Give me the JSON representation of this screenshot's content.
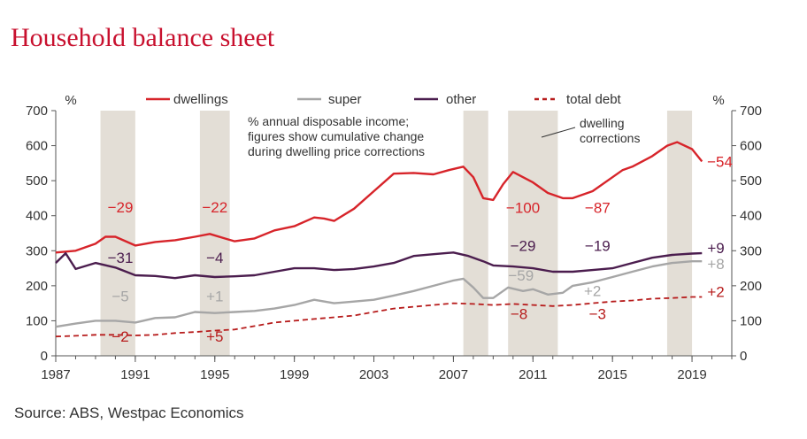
{
  "title": "Household balance sheet",
  "source": "Source: ABS, Westpac Economics",
  "colors": {
    "dwellings": "#d7242a",
    "super": "#a6a6a6",
    "other": "#4b1d4e",
    "total_debt": "#b71c1c",
    "shade": "#e3ded6",
    "title": "#c8102e"
  },
  "chart_data": {
    "type": "line",
    "y_unit_left": "%",
    "y_unit_right": "%",
    "ylim": [
      0,
      700
    ],
    "yticks": [
      0,
      100,
      200,
      300,
      400,
      500,
      600,
      700
    ],
    "xlim": [
      1987,
      2021
    ],
    "xticks": [
      1987,
      1991,
      1995,
      1999,
      2003,
      2007,
      2011,
      2015,
      2019
    ],
    "grid": false,
    "legend_position": "top",
    "annotation_note": "% annual disposable income;\nfigures show cumulative change\nduring dwelling price corrections",
    "corrections_label": "dwelling\ncorrections",
    "shaded_periods": [
      [
        1989.25,
        1991.0
      ],
      [
        1994.25,
        1995.75
      ],
      [
        2007.5,
        2008.75
      ],
      [
        2009.75,
        2012.25
      ],
      [
        2017.75,
        2019.0
      ]
    ],
    "series": [
      {
        "name": "dwellings",
        "key": "dwellings",
        "style": "solid",
        "points": [
          [
            1987,
            295
          ],
          [
            1988,
            300
          ],
          [
            1989,
            320
          ],
          [
            1989.5,
            340
          ],
          [
            1990,
            340
          ],
          [
            1991,
            315
          ],
          [
            1992,
            325
          ],
          [
            1993,
            330
          ],
          [
            1994,
            340
          ],
          [
            1994.75,
            348
          ],
          [
            1995.5,
            335
          ],
          [
            1996,
            327
          ],
          [
            1997,
            335
          ],
          [
            1998,
            358
          ],
          [
            1999,
            370
          ],
          [
            2000,
            395
          ],
          [
            2000.5,
            392
          ],
          [
            2001,
            385
          ],
          [
            2002,
            420
          ],
          [
            2003,
            470
          ],
          [
            2004,
            520
          ],
          [
            2005,
            522
          ],
          [
            2006,
            518
          ],
          [
            2006.75,
            530
          ],
          [
            2007.5,
            540
          ],
          [
            2008,
            510
          ],
          [
            2008.5,
            450
          ],
          [
            2009,
            445
          ],
          [
            2009.5,
            490
          ],
          [
            2010,
            525
          ],
          [
            2011,
            495
          ],
          [
            2011.75,
            465
          ],
          [
            2012.5,
            450
          ],
          [
            2013,
            450
          ],
          [
            2014,
            470
          ],
          [
            2015,
            510
          ],
          [
            2015.5,
            530
          ],
          [
            2016,
            540
          ],
          [
            2017,
            570
          ],
          [
            2017.75,
            600
          ],
          [
            2018.25,
            610
          ],
          [
            2019,
            590
          ],
          [
            2019.5,
            555
          ]
        ],
        "labels": [
          {
            "text": "−29",
            "x": 1990.25,
            "y": 410
          },
          {
            "text": "−22",
            "x": 1995.0,
            "y": 410
          },
          {
            "text": "−100",
            "x": 2010.5,
            "y": 408
          },
          {
            "text": "−87",
            "x": 2014.25,
            "y": 408
          },
          {
            "text": "−54",
            "x": 2020.4,
            "y": 540
          }
        ]
      },
      {
        "name": "super",
        "key": "super",
        "style": "solid",
        "points": [
          [
            1987,
            83
          ],
          [
            1988,
            92
          ],
          [
            1989,
            100
          ],
          [
            1990,
            100
          ],
          [
            1991,
            95
          ],
          [
            1992,
            108
          ],
          [
            1993,
            110
          ],
          [
            1994,
            125
          ],
          [
            1995,
            122
          ],
          [
            1996,
            125
          ],
          [
            1997,
            128
          ],
          [
            1998,
            135
          ],
          [
            1999,
            145
          ],
          [
            2000,
            160
          ],
          [
            2001,
            150
          ],
          [
            2002,
            155
          ],
          [
            2003,
            160
          ],
          [
            2004,
            172
          ],
          [
            2005,
            185
          ],
          [
            2006,
            200
          ],
          [
            2007,
            215
          ],
          [
            2007.5,
            220
          ],
          [
            2008,
            195
          ],
          [
            2008.5,
            165
          ],
          [
            2009,
            165
          ],
          [
            2009.75,
            195
          ],
          [
            2010.5,
            185
          ],
          [
            2011,
            190
          ],
          [
            2011.75,
            175
          ],
          [
            2012.5,
            180
          ],
          [
            2013,
            200
          ],
          [
            2014,
            210
          ],
          [
            2015,
            225
          ],
          [
            2016,
            240
          ],
          [
            2017,
            255
          ],
          [
            2018,
            265
          ],
          [
            2019,
            270
          ],
          [
            2019.5,
            270
          ]
        ],
        "labels": [
          {
            "text": "−5",
            "x": 1990.25,
            "y": 155
          },
          {
            "text": "+1",
            "x": 1995.0,
            "y": 155
          },
          {
            "text": "−59",
            "x": 2010.4,
            "y": 215
          },
          {
            "text": "+2",
            "x": 2014.0,
            "y": 170
          },
          {
            "text": "+8",
            "x": 2020.2,
            "y": 248
          }
        ]
      },
      {
        "name": "other",
        "key": "other",
        "style": "solid",
        "points": [
          [
            1987,
            265
          ],
          [
            1987.5,
            293
          ],
          [
            1988,
            248
          ],
          [
            1989,
            265
          ],
          [
            1990,
            252
          ],
          [
            1991,
            230
          ],
          [
            1992,
            228
          ],
          [
            1993,
            222
          ],
          [
            1994,
            230
          ],
          [
            1995,
            225
          ],
          [
            1996,
            227
          ],
          [
            1997,
            230
          ],
          [
            1998,
            240
          ],
          [
            1999,
            250
          ],
          [
            2000,
            250
          ],
          [
            2001,
            245
          ],
          [
            2002,
            248
          ],
          [
            2003,
            255
          ],
          [
            2004,
            265
          ],
          [
            2005,
            285
          ],
          [
            2006,
            290
          ],
          [
            2007,
            295
          ],
          [
            2007.75,
            285
          ],
          [
            2008.5,
            270
          ],
          [
            2009,
            258
          ],
          [
            2010,
            255
          ],
          [
            2011,
            250
          ],
          [
            2012,
            240
          ],
          [
            2013,
            240
          ],
          [
            2014,
            245
          ],
          [
            2015,
            250
          ],
          [
            2016,
            265
          ],
          [
            2017,
            280
          ],
          [
            2018,
            288
          ],
          [
            2019,
            292
          ],
          [
            2019.5,
            293
          ]
        ],
        "labels": [
          {
            "text": "−31",
            "x": 1990.25,
            "y": 265
          },
          {
            "text": "−4",
            "x": 1995.0,
            "y": 265
          },
          {
            "text": "−29",
            "x": 2010.5,
            "y": 300
          },
          {
            "text": "−19",
            "x": 2014.25,
            "y": 300
          },
          {
            "text": "+9",
            "x": 2020.2,
            "y": 293
          }
        ]
      },
      {
        "name": "total debt",
        "key": "total_debt",
        "style": "dashed",
        "points": [
          [
            1987,
            55
          ],
          [
            1988,
            57
          ],
          [
            1989,
            60
          ],
          [
            1990,
            60
          ],
          [
            1991,
            58
          ],
          [
            1992,
            60
          ],
          [
            1993,
            65
          ],
          [
            1994,
            68
          ],
          [
            1995,
            72
          ],
          [
            1996,
            75
          ],
          [
            1997,
            85
          ],
          [
            1998,
            95
          ],
          [
            1999,
            100
          ],
          [
            2000,
            105
          ],
          [
            2001,
            110
          ],
          [
            2002,
            115
          ],
          [
            2003,
            125
          ],
          [
            2004,
            135
          ],
          [
            2005,
            140
          ],
          [
            2006,
            145
          ],
          [
            2007,
            150
          ],
          [
            2008,
            148
          ],
          [
            2009,
            145
          ],
          [
            2010,
            148
          ],
          [
            2011,
            145
          ],
          [
            2012,
            142
          ],
          [
            2013,
            145
          ],
          [
            2014,
            150
          ],
          [
            2015,
            155
          ],
          [
            2016,
            158
          ],
          [
            2017,
            163
          ],
          [
            2018,
            165
          ],
          [
            2019,
            168
          ],
          [
            2019.5,
            168
          ]
        ],
        "labels": [
          {
            "text": "−2",
            "x": 1990.25,
            "y": 40
          },
          {
            "text": "+5",
            "x": 1995.0,
            "y": 40
          },
          {
            "text": "−8",
            "x": 2010.3,
            "y": 105
          },
          {
            "text": "−3",
            "x": 2014.25,
            "y": 105
          },
          {
            "text": "+2",
            "x": 2020.2,
            "y": 168
          }
        ]
      }
    ]
  }
}
